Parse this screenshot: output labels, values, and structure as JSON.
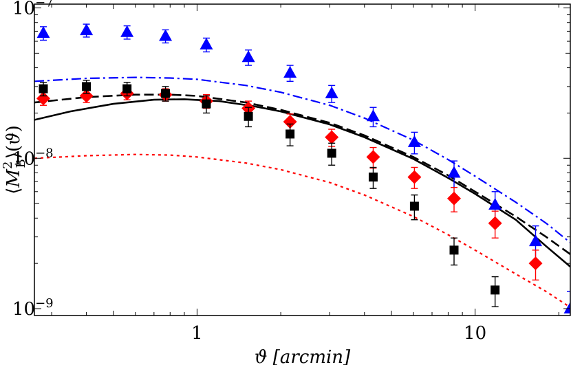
{
  "chart_data": {
    "type": "scatter",
    "xscale": "log",
    "yscale": "log",
    "xlim": [
      0.26,
      22
    ],
    "ylim": [
      9e-10,
      1.06e-07
    ],
    "xlabel": "ϑ [arcmin]",
    "ylabel": "⟨M_B^2⟩(ϑ)",
    "xticks": [
      {
        "value": 1,
        "label": "1"
      },
      {
        "value": 10,
        "label": "10"
      }
    ],
    "yticks": [
      {
        "value": 1e-09,
        "mant": "10",
        "exp": "−9"
      },
      {
        "value": 1e-08,
        "mant": "10",
        "exp": "−8"
      },
      {
        "value": 1e-07,
        "mant": "10",
        "exp": "−7"
      }
    ],
    "series": [
      {
        "name": "blue triangles",
        "marker": "triangle",
        "color": "#0000ff",
        "points": [
          {
            "x": 0.28,
            "y": 6.8e-08,
            "err": 7e-09
          },
          {
            "x": 0.4,
            "y": 7.1e-08,
            "err": 7e-09
          },
          {
            "x": 0.56,
            "y": 6.9e-08,
            "err": 7e-09
          },
          {
            "x": 0.77,
            "y": 6.5e-08,
            "err": 6.5e-09
          },
          {
            "x": 1.08,
            "y": 5.7e-08,
            "err": 6e-09
          },
          {
            "x": 1.53,
            "y": 4.7e-08,
            "err": 5.5e-09
          },
          {
            "x": 2.16,
            "y": 3.7e-08,
            "err": 4.5e-09
          },
          {
            "x": 3.05,
            "y": 2.7e-08,
            "err": 3.5e-09
          },
          {
            "x": 4.3,
            "y": 1.9e-08,
            "err": 2.8e-09
          },
          {
            "x": 6.05,
            "y": 1.28e-08,
            "err": 2.1e-09
          },
          {
            "x": 8.4,
            "y": 8e-09,
            "err": 1.6e-09
          },
          {
            "x": 11.8,
            "y": 4.9e-09,
            "err": 1.1e-09
          },
          {
            "x": 16.5,
            "y": 2.8e-09,
            "err": 7.5e-10
          },
          {
            "x": 22.0,
            "y": 1e-09,
            "err": 3e-10
          }
        ]
      },
      {
        "name": "red diamonds",
        "marker": "diamond",
        "color": "#ff0000",
        "points": [
          {
            "x": 0.28,
            "y": 2.5e-08,
            "err": 2.5e-09
          },
          {
            "x": 0.4,
            "y": 2.6e-08,
            "err": 2.5e-09
          },
          {
            "x": 0.56,
            "y": 2.7e-08,
            "err": 2.5e-09
          },
          {
            "x": 0.77,
            "y": 2.65e-08,
            "err": 2.5e-09
          },
          {
            "x": 1.08,
            "y": 2.4e-08,
            "err": 2.5e-09
          },
          {
            "x": 1.53,
            "y": 2.15e-08,
            "err": 2.5e-09
          },
          {
            "x": 2.16,
            "y": 1.75e-08,
            "err": 2.2e-09
          },
          {
            "x": 3.05,
            "y": 1.38e-08,
            "err": 1.8e-09
          },
          {
            "x": 4.3,
            "y": 1.02e-08,
            "err": 1.6e-09
          },
          {
            "x": 6.05,
            "y": 7.5e-09,
            "err": 1.2e-09
          },
          {
            "x": 8.4,
            "y": 5.4e-09,
            "err": 1e-09
          },
          {
            "x": 11.8,
            "y": 3.7e-09,
            "err": 7.5e-10
          },
          {
            "x": 16.5,
            "y": 2e-09,
            "err": 4.5e-10
          }
        ]
      },
      {
        "name": "black squares",
        "marker": "square",
        "color": "#000000",
        "points": [
          {
            "x": 0.28,
            "y": 2.9e-08,
            "err": 3e-09
          },
          {
            "x": 0.4,
            "y": 3e-08,
            "err": 3e-09
          },
          {
            "x": 0.56,
            "y": 2.9e-08,
            "err": 3e-09
          },
          {
            "x": 0.77,
            "y": 2.7e-08,
            "err": 3e-09
          },
          {
            "x": 1.08,
            "y": 2.3e-08,
            "err": 3e-09
          },
          {
            "x": 1.53,
            "y": 1.9e-08,
            "err": 2.8e-09
          },
          {
            "x": 2.16,
            "y": 1.45e-08,
            "err": 2.4e-09
          },
          {
            "x": 3.05,
            "y": 1.08e-08,
            "err": 1.8e-09
          },
          {
            "x": 4.3,
            "y": 7.5e-09,
            "err": 1.2e-09
          },
          {
            "x": 6.05,
            "y": 4.8e-09,
            "err": 9e-10
          },
          {
            "x": 8.4,
            "y": 2.45e-09,
            "err": 5e-10
          },
          {
            "x": 11.8,
            "y": 1.33e-09,
            "err": 3e-10
          }
        ]
      }
    ],
    "curves": [
      {
        "name": "blue dash-dot model",
        "style": "dashdot",
        "color": "#0000ff",
        "points": [
          [
            0.26,
            3.25e-08
          ],
          [
            0.4,
            3.4e-08
          ],
          [
            0.6,
            3.45e-08
          ],
          [
            0.8,
            3.42e-08
          ],
          [
            1.0,
            3.35e-08
          ],
          [
            1.5,
            3.05e-08
          ],
          [
            2.0,
            2.75e-08
          ],
          [
            3.0,
            2.25e-08
          ],
          [
            4.0,
            1.85e-08
          ],
          [
            6.0,
            1.32e-08
          ],
          [
            8.0,
            9.8e-09
          ],
          [
            10.0,
            7.6e-09
          ],
          [
            14.0,
            5.1e-09
          ],
          [
            18.0,
            3.7e-09
          ],
          [
            22.0,
            2.75e-09
          ]
        ]
      },
      {
        "name": "black dashed model",
        "style": "dashed",
        "color": "#000000",
        "points": [
          [
            0.26,
            2.35e-08
          ],
          [
            0.4,
            2.55e-08
          ],
          [
            0.6,
            2.65e-08
          ],
          [
            0.8,
            2.65e-08
          ],
          [
            1.0,
            2.6e-08
          ],
          [
            1.5,
            2.35e-08
          ],
          [
            2.0,
            2.1e-08
          ],
          [
            3.0,
            1.72e-08
          ],
          [
            4.0,
            1.42e-08
          ],
          [
            6.0,
            1.02e-08
          ],
          [
            8.0,
            7.7e-09
          ],
          [
            10.0,
            6e-09
          ],
          [
            14.0,
            4.1e-09
          ],
          [
            18.0,
            3e-09
          ],
          [
            22.0,
            2.3e-09
          ]
        ]
      },
      {
        "name": "black solid model",
        "style": "solid",
        "color": "#000000",
        "points": [
          [
            0.26,
            1.8e-08
          ],
          [
            0.35,
            2.05e-08
          ],
          [
            0.5,
            2.3e-08
          ],
          [
            0.7,
            2.45e-08
          ],
          [
            0.9,
            2.47e-08
          ],
          [
            1.2,
            2.4e-08
          ],
          [
            1.6,
            2.22e-08
          ],
          [
            2.0,
            2.05e-08
          ],
          [
            3.0,
            1.68e-08
          ],
          [
            4.0,
            1.38e-08
          ],
          [
            6.0,
            9.9e-09
          ],
          [
            8.0,
            7.4e-09
          ],
          [
            10.0,
            5.8e-09
          ],
          [
            14.0,
            3.9e-09
          ],
          [
            18.0,
            2.6e-09
          ],
          [
            22.0,
            1.9e-09
          ]
        ]
      },
      {
        "name": "red dotted model",
        "style": "dotted",
        "color": "#ff0000",
        "points": [
          [
            0.26,
            1e-08
          ],
          [
            0.4,
            1.04e-08
          ],
          [
            0.6,
            1.06e-08
          ],
          [
            0.8,
            1.05e-08
          ],
          [
            1.0,
            1.02e-08
          ],
          [
            1.5,
            9.3e-09
          ],
          [
            2.0,
            8.4e-09
          ],
          [
            3.0,
            6.9e-09
          ],
          [
            4.0,
            5.7e-09
          ],
          [
            6.0,
            4.1e-09
          ],
          [
            8.0,
            3.1e-09
          ],
          [
            10.0,
            2.45e-09
          ],
          [
            14.0,
            1.7e-09
          ],
          [
            18.0,
            1.3e-09
          ],
          [
            22.0,
            1.02e-09
          ]
        ]
      }
    ]
  }
}
